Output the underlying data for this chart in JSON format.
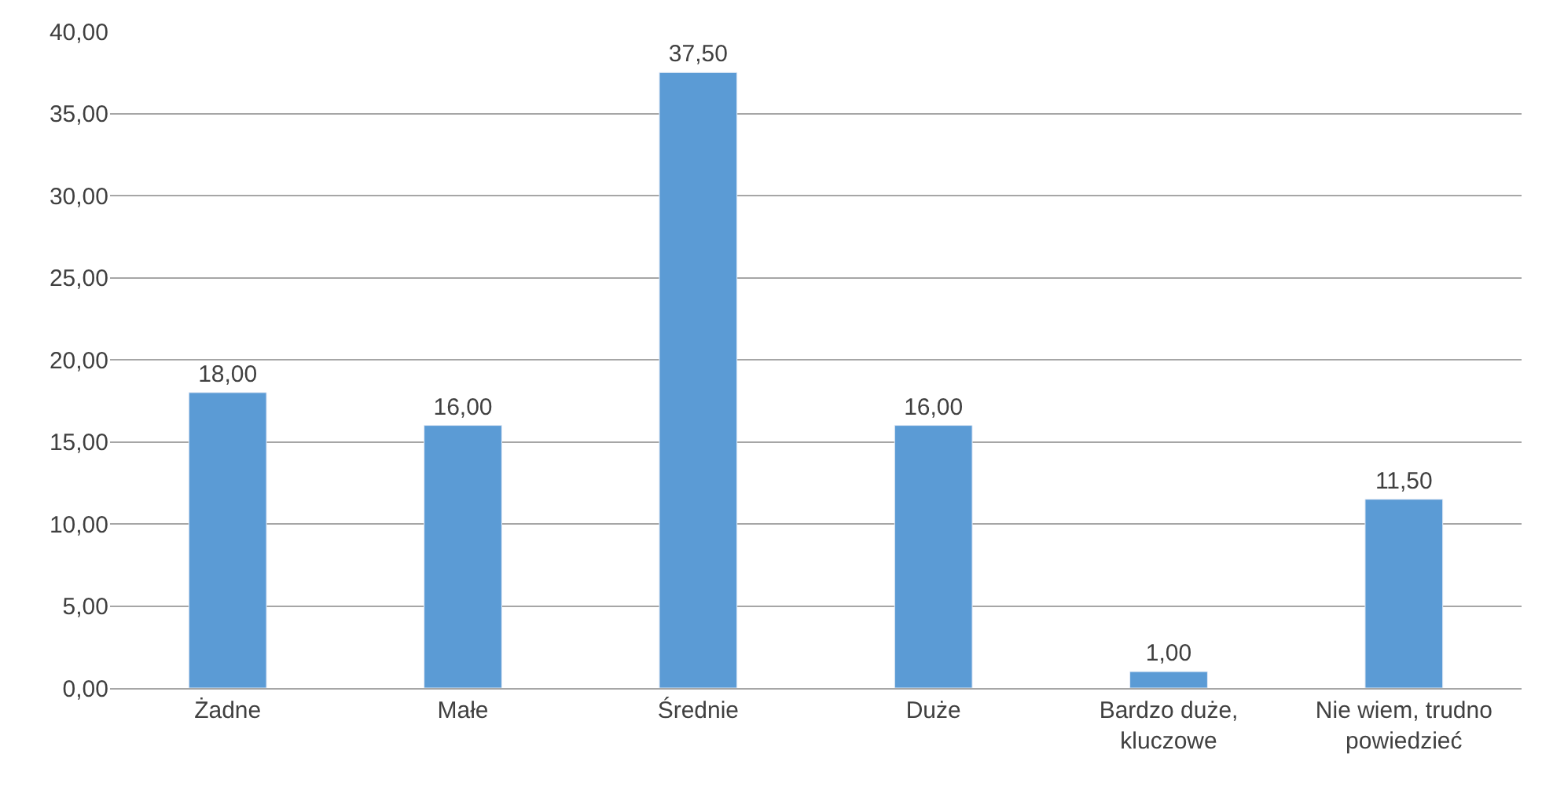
{
  "chart_data": {
    "type": "bar",
    "categories": [
      "Żadne",
      "Małe",
      "Średnie",
      "Duże",
      "Bardzo duże, kluczowe",
      "Nie wiem, trudno powiedzieć"
    ],
    "values": [
      18.0,
      16.0,
      37.5,
      16.0,
      1.0,
      11.5
    ],
    "value_labels": [
      "18,00",
      "16,00",
      "37,50",
      "16,00",
      "1,00",
      "11,50"
    ],
    "color": "#5b9bd5",
    "ylim": [
      0,
      40
    ],
    "yticks": [
      {
        "value": 0,
        "label": "0,00"
      },
      {
        "value": 5,
        "label": "5,00"
      },
      {
        "value": 10,
        "label": "10,00"
      },
      {
        "value": 15,
        "label": "15,00"
      },
      {
        "value": 20,
        "label": "20,00"
      },
      {
        "value": 25,
        "label": "25,00"
      },
      {
        "value": 30,
        "label": "30,00"
      },
      {
        "value": 35,
        "label": "35,00"
      },
      {
        "value": 40,
        "label": "40,00"
      }
    ],
    "grid": "y"
  }
}
